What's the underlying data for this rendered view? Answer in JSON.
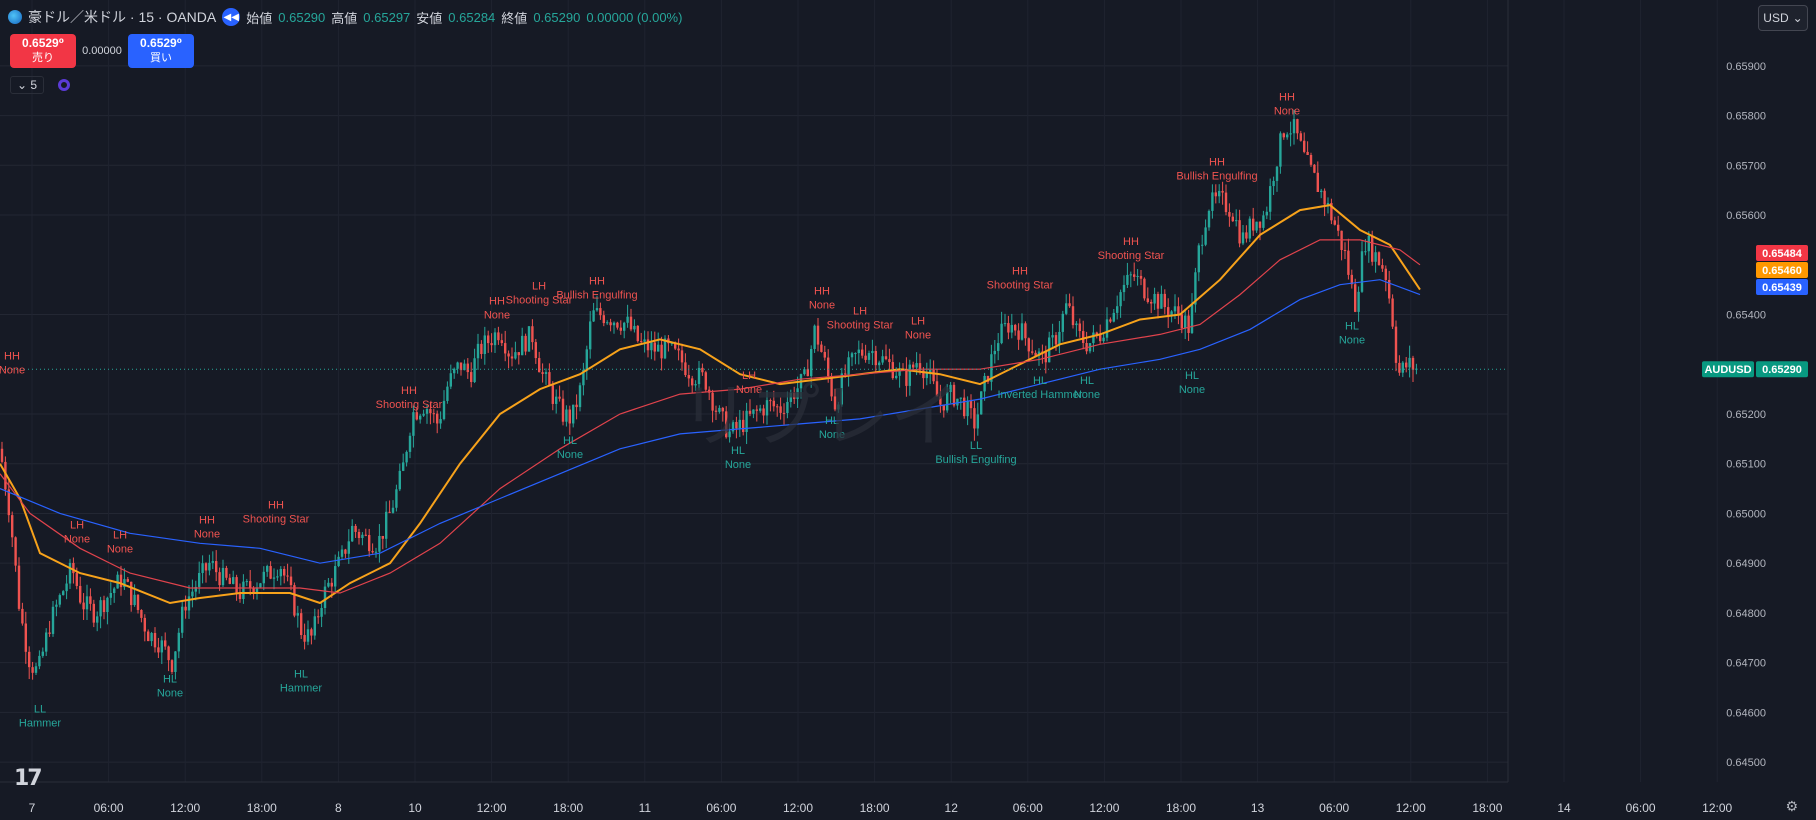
{
  "header": {
    "symbol": "豪ドル／米ドル · 15 · OANDA",
    "open_label": "始値",
    "open": "0.65290",
    "high_label": "高値",
    "high": "0.65297",
    "low_label": "安値",
    "low": "0.65284",
    "close_label": "終値",
    "close": "0.65290",
    "change": "0.00000 (0.00%)"
  },
  "trade": {
    "sell_price": "0.6529⁰",
    "sell_label": "売り",
    "spread": "0.00000",
    "buy_price": "0.6529⁰",
    "buy_label": "買い"
  },
  "indicator": {
    "count": "5"
  },
  "currency_button": "USD",
  "watermark": "リプレイ",
  "colors": {
    "up": "#26a69a",
    "down": "#ef5350",
    "ma_orange": "#f7a21b",
    "ma_red": "#e0434c",
    "ma_blue": "#2962ff",
    "bg": "#161a25"
  },
  "price_axis": {
    "ticks": [
      "0.65900",
      "0.65800",
      "0.65700",
      "0.65600",
      "0.65400",
      "0.65200",
      "0.65100",
      "0.65000",
      "0.64900",
      "0.64800",
      "0.64700",
      "0.64600",
      "0.64500"
    ],
    "badges": [
      {
        "text": "0.65484",
        "color": "#f23645"
      },
      {
        "text": "0.65460",
        "color": "#ff9800"
      },
      {
        "text": "0.65439",
        "color": "#2962ff"
      }
    ],
    "current_symbol": "AUDUSD",
    "current_price": "0.65290"
  },
  "time_axis": [
    "7",
    "06:00",
    "12:00",
    "18:00",
    "8",
    "10",
    "12:00",
    "18:00",
    "11",
    "06:00",
    "12:00",
    "18:00",
    "12",
    "06:00",
    "12:00",
    "18:00",
    "13",
    "06:00",
    "12:00",
    "18:00",
    "14",
    "06:00",
    "12:00"
  ],
  "chart_data": {
    "type": "candlestick",
    "symbol": "AUDUSD",
    "ylim": [
      0.6446,
      0.6596
    ],
    "price_path": [
      [
        0,
        0.6513
      ],
      [
        10,
        0.65
      ],
      [
        20,
        0.648
      ],
      [
        30,
        0.647
      ],
      [
        38,
        0.6468
      ],
      [
        50,
        0.6478
      ],
      [
        62,
        0.6484
      ],
      [
        72,
        0.6489
      ],
      [
        82,
        0.6482
      ],
      [
        95,
        0.648
      ],
      [
        110,
        0.6484
      ],
      [
        122,
        0.6487
      ],
      [
        135,
        0.6482
      ],
      [
        148,
        0.6476
      ],
      [
        160,
        0.6474
      ],
      [
        172,
        0.647
      ],
      [
        185,
        0.6482
      ],
      [
        200,
        0.6487
      ],
      [
        210,
        0.649
      ],
      [
        222,
        0.6487
      ],
      [
        240,
        0.6484
      ],
      [
        255,
        0.6486
      ],
      [
        270,
        0.6488
      ],
      [
        280,
        0.649
      ],
      [
        292,
        0.6483
      ],
      [
        302,
        0.6476
      ],
      [
        312,
        0.6475
      ],
      [
        322,
        0.6483
      ],
      [
        332,
        0.6487
      ],
      [
        342,
        0.6491
      ],
      [
        352,
        0.6497
      ],
      [
        365,
        0.6495
      ],
      [
        378,
        0.6494
      ],
      [
        390,
        0.65
      ],
      [
        402,
        0.6508
      ],
      [
        412,
        0.652
      ],
      [
        425,
        0.6522
      ],
      [
        438,
        0.6518
      ],
      [
        448,
        0.6526
      ],
      [
        460,
        0.653
      ],
      [
        470,
        0.6528
      ],
      [
        480,
        0.6533
      ],
      [
        490,
        0.6535
      ],
      [
        500,
        0.6537
      ],
      [
        510,
        0.6532
      ],
      [
        522,
        0.6534
      ],
      [
        532,
        0.6536
      ],
      [
        542,
        0.6528
      ],
      [
        552,
        0.6524
      ],
      [
        562,
        0.652
      ],
      [
        572,
        0.6519
      ],
      [
        582,
        0.6526
      ],
      [
        592,
        0.654
      ],
      [
        602,
        0.654
      ],
      [
        615,
        0.6539
      ],
      [
        628,
        0.6538
      ],
      [
        640,
        0.6534
      ],
      [
        655,
        0.6533
      ],
      [
        668,
        0.6533
      ],
      [
        680,
        0.6531
      ],
      [
        692,
        0.6528
      ],
      [
        705,
        0.6527
      ],
      [
        718,
        0.652
      ],
      [
        730,
        0.6516
      ],
      [
        742,
        0.6518
      ],
      [
        755,
        0.652
      ],
      [
        768,
        0.6522
      ],
      [
        780,
        0.6521
      ],
      [
        792,
        0.6524
      ],
      [
        805,
        0.6527
      ],
      [
        815,
        0.6537
      ],
      [
        825,
        0.653
      ],
      [
        835,
        0.6522
      ],
      [
        845,
        0.6528
      ],
      [
        857,
        0.6532
      ],
      [
        870,
        0.6533
      ],
      [
        882,
        0.6531
      ],
      [
        895,
        0.6529
      ],
      [
        905,
        0.6527
      ],
      [
        918,
        0.6531
      ],
      [
        928,
        0.6528
      ],
      [
        940,
        0.6522
      ],
      [
        952,
        0.6524
      ],
      [
        963,
        0.6522
      ],
      [
        975,
        0.6518
      ],
      [
        985,
        0.6526
      ],
      [
        997,
        0.6535
      ],
      [
        1008,
        0.6538
      ],
      [
        1020,
        0.6537
      ],
      [
        1030,
        0.6534
      ],
      [
        1042,
        0.6531
      ],
      [
        1055,
        0.6535
      ],
      [
        1067,
        0.6542
      ],
      [
        1077,
        0.6536
      ],
      [
        1088,
        0.6534
      ],
      [
        1100,
        0.6536
      ],
      [
        1112,
        0.6541
      ],
      [
        1122,
        0.6545
      ],
      [
        1133,
        0.6548
      ],
      [
        1145,
        0.6545
      ],
      [
        1157,
        0.6543
      ],
      [
        1168,
        0.6541
      ],
      [
        1180,
        0.654
      ],
      [
        1190,
        0.6537
      ],
      [
        1198,
        0.6552
      ],
      [
        1208,
        0.6562
      ],
      [
        1220,
        0.6563
      ],
      [
        1232,
        0.6561
      ],
      [
        1242,
        0.6555
      ],
      [
        1255,
        0.6559
      ],
      [
        1265,
        0.656
      ],
      [
        1275,
        0.657
      ],
      [
        1285,
        0.6578
      ],
      [
        1295,
        0.6577
      ],
      [
        1305,
        0.6571
      ],
      [
        1315,
        0.6567
      ],
      [
        1325,
        0.6563
      ],
      [
        1335,
        0.6558
      ],
      [
        1345,
        0.6552
      ],
      [
        1355,
        0.6542
      ],
      [
        1365,
        0.6555
      ],
      [
        1375,
        0.6552
      ],
      [
        1385,
        0.6549
      ],
      [
        1392,
        0.654
      ],
      [
        1398,
        0.6528
      ],
      [
        1408,
        0.653
      ],
      [
        1418,
        0.6529
      ]
    ],
    "moving_averages": [
      {
        "name": "orange",
        "color": "#f7a21b",
        "points": [
          [
            0,
            0.651
          ],
          [
            20,
            0.6503
          ],
          [
            40,
            0.6492
          ],
          [
            80,
            0.6488
          ],
          [
            120,
            0.6486
          ],
          [
            170,
            0.6482
          ],
          [
            200,
            0.6483
          ],
          [
            240,
            0.6484
          ],
          [
            290,
            0.6484
          ],
          [
            320,
            0.6482
          ],
          [
            350,
            0.6486
          ],
          [
            390,
            0.649
          ],
          [
            420,
            0.6498
          ],
          [
            460,
            0.651
          ],
          [
            500,
            0.652
          ],
          [
            540,
            0.6525
          ],
          [
            580,
            0.6528
          ],
          [
            620,
            0.6533
          ],
          [
            660,
            0.6535
          ],
          [
            700,
            0.6533
          ],
          [
            740,
            0.6528
          ],
          [
            780,
            0.6526
          ],
          [
            820,
            0.6527
          ],
          [
            860,
            0.6528
          ],
          [
            900,
            0.6529
          ],
          [
            940,
            0.6528
          ],
          [
            980,
            0.6526
          ],
          [
            1020,
            0.653
          ],
          [
            1060,
            0.6534
          ],
          [
            1100,
            0.6536
          ],
          [
            1140,
            0.6539
          ],
          [
            1180,
            0.654
          ],
          [
            1220,
            0.6547
          ],
          [
            1260,
            0.6556
          ],
          [
            1300,
            0.6561
          ],
          [
            1330,
            0.6562
          ],
          [
            1360,
            0.6557
          ],
          [
            1390,
            0.6554
          ],
          [
            1420,
            0.6545
          ]
        ]
      },
      {
        "name": "red",
        "color": "#e0434c",
        "points": [
          [
            0,
            0.6508
          ],
          [
            30,
            0.65
          ],
          [
            80,
            0.6493
          ],
          [
            130,
            0.6488
          ],
          [
            190,
            0.6485
          ],
          [
            250,
            0.6485
          ],
          [
            300,
            0.6485
          ],
          [
            340,
            0.6484
          ],
          [
            390,
            0.6488
          ],
          [
            440,
            0.6494
          ],
          [
            500,
            0.6505
          ],
          [
            560,
            0.6513
          ],
          [
            620,
            0.652
          ],
          [
            680,
            0.6524
          ],
          [
            740,
            0.6525
          ],
          [
            800,
            0.6527
          ],
          [
            860,
            0.6528
          ],
          [
            920,
            0.6529
          ],
          [
            980,
            0.6529
          ],
          [
            1040,
            0.6531
          ],
          [
            1100,
            0.6534
          ],
          [
            1160,
            0.6536
          ],
          [
            1200,
            0.6538
          ],
          [
            1240,
            0.6544
          ],
          [
            1280,
            0.6551
          ],
          [
            1320,
            0.6555
          ],
          [
            1360,
            0.6555
          ],
          [
            1400,
            0.6553
          ],
          [
            1420,
            0.655
          ]
        ]
      },
      {
        "name": "blue",
        "color": "#2962ff",
        "points": [
          [
            0,
            0.6505
          ],
          [
            60,
            0.65
          ],
          [
            130,
            0.6496
          ],
          [
            200,
            0.6494
          ],
          [
            260,
            0.6493
          ],
          [
            320,
            0.649
          ],
          [
            380,
            0.6492
          ],
          [
            440,
            0.6498
          ],
          [
            500,
            0.6503
          ],
          [
            560,
            0.6508
          ],
          [
            620,
            0.6513
          ],
          [
            680,
            0.6516
          ],
          [
            740,
            0.6517
          ],
          [
            800,
            0.6518
          ],
          [
            860,
            0.6519
          ],
          [
            920,
            0.6521
          ],
          [
            980,
            0.6523
          ],
          [
            1040,
            0.6526
          ],
          [
            1100,
            0.6529
          ],
          [
            1160,
            0.6531
          ],
          [
            1200,
            0.6533
          ],
          [
            1250,
            0.6537
          ],
          [
            1300,
            0.6543
          ],
          [
            1340,
            0.6546
          ],
          [
            1380,
            0.6547
          ],
          [
            1420,
            0.6544
          ]
        ]
      }
    ],
    "annotations": [
      {
        "x": 12,
        "price": 0.6531,
        "text": [
          "HH",
          "None"
        ],
        "kind": "high"
      },
      {
        "x": 40,
        "price": 0.646,
        "text": [
          "LL",
          "Hammer"
        ],
        "kind": "low"
      },
      {
        "x": 77,
        "price": 0.6497,
        "text": [
          "LH",
          "None"
        ],
        "kind": "high"
      },
      {
        "x": 120,
        "price": 0.6495,
        "text": [
          "LH",
          "None"
        ],
        "kind": "high"
      },
      {
        "x": 170,
        "price": 0.6466,
        "text": [
          "HL",
          "None"
        ],
        "kind": "low"
      },
      {
        "x": 207,
        "price": 0.6498,
        "text": [
          "HH",
          "None"
        ],
        "kind": "high"
      },
      {
        "x": 276,
        "price": 0.6501,
        "text": [
          "HH",
          "Shooting Star"
        ],
        "kind": "high"
      },
      {
        "x": 301,
        "price": 0.6467,
        "text": [
          "HL",
          "Hammer"
        ],
        "kind": "low"
      },
      {
        "x": 409,
        "price": 0.6524,
        "text": [
          "HH",
          "Shooting Star"
        ],
        "kind": "high"
      },
      {
        "x": 497,
        "price": 0.6542,
        "text": [
          "HH",
          "None"
        ],
        "kind": "high"
      },
      {
        "x": 539,
        "price": 0.6545,
        "text": [
          "LH",
          "Shooting Star"
        ],
        "kind": "high"
      },
      {
        "x": 597,
        "price": 0.6546,
        "text": [
          "HH",
          "Bullish Engulfing"
        ],
        "kind": "high"
      },
      {
        "x": 570,
        "price": 0.6514,
        "text": [
          "HL",
          "None"
        ],
        "kind": "low"
      },
      {
        "x": 749,
        "price": 0.6527,
        "text": [
          "LH",
          "None"
        ],
        "kind": "high"
      },
      {
        "x": 738,
        "price": 0.6512,
        "text": [
          "HL",
          "None"
        ],
        "kind": "low"
      },
      {
        "x": 822,
        "price": 0.6544,
        "text": [
          "HH",
          "None"
        ],
        "kind": "high"
      },
      {
        "x": 860,
        "price": 0.654,
        "text": [
          "LH",
          "Shooting Star"
        ],
        "kind": "high"
      },
      {
        "x": 832,
        "price": 0.6518,
        "text": [
          "HL",
          "None"
        ],
        "kind": "low"
      },
      {
        "x": 918,
        "price": 0.6538,
        "text": [
          "LH",
          "None"
        ],
        "kind": "high"
      },
      {
        "x": 976,
        "price": 0.6513,
        "text": [
          "LL",
          "Bullish Engulfing"
        ],
        "kind": "low"
      },
      {
        "x": 1020,
        "price": 0.6548,
        "text": [
          "HH",
          "Shooting Star"
        ],
        "kind": "high"
      },
      {
        "x": 1040,
        "price": 0.6526,
        "text": [
          "HL",
          "Inverted Hammer"
        ],
        "kind": "low"
      },
      {
        "x": 1087,
        "price": 0.6526,
        "text": [
          "HL",
          "None"
        ],
        "kind": "low"
      },
      {
        "x": 1131,
        "price": 0.6554,
        "text": [
          "HH",
          "Shooting Star"
        ],
        "kind": "high"
      },
      {
        "x": 1192,
        "price": 0.6527,
        "text": [
          "HL",
          "None"
        ],
        "kind": "low"
      },
      {
        "x": 1217,
        "price": 0.657,
        "text": [
          "HH",
          "Bullish Engulfing"
        ],
        "kind": "high"
      },
      {
        "x": 1287,
        "price": 0.6583,
        "text": [
          "HH",
          "None"
        ],
        "kind": "high"
      },
      {
        "x": 1352,
        "price": 0.6537,
        "text": [
          "HL",
          "None"
        ],
        "kind": "low"
      }
    ]
  }
}
